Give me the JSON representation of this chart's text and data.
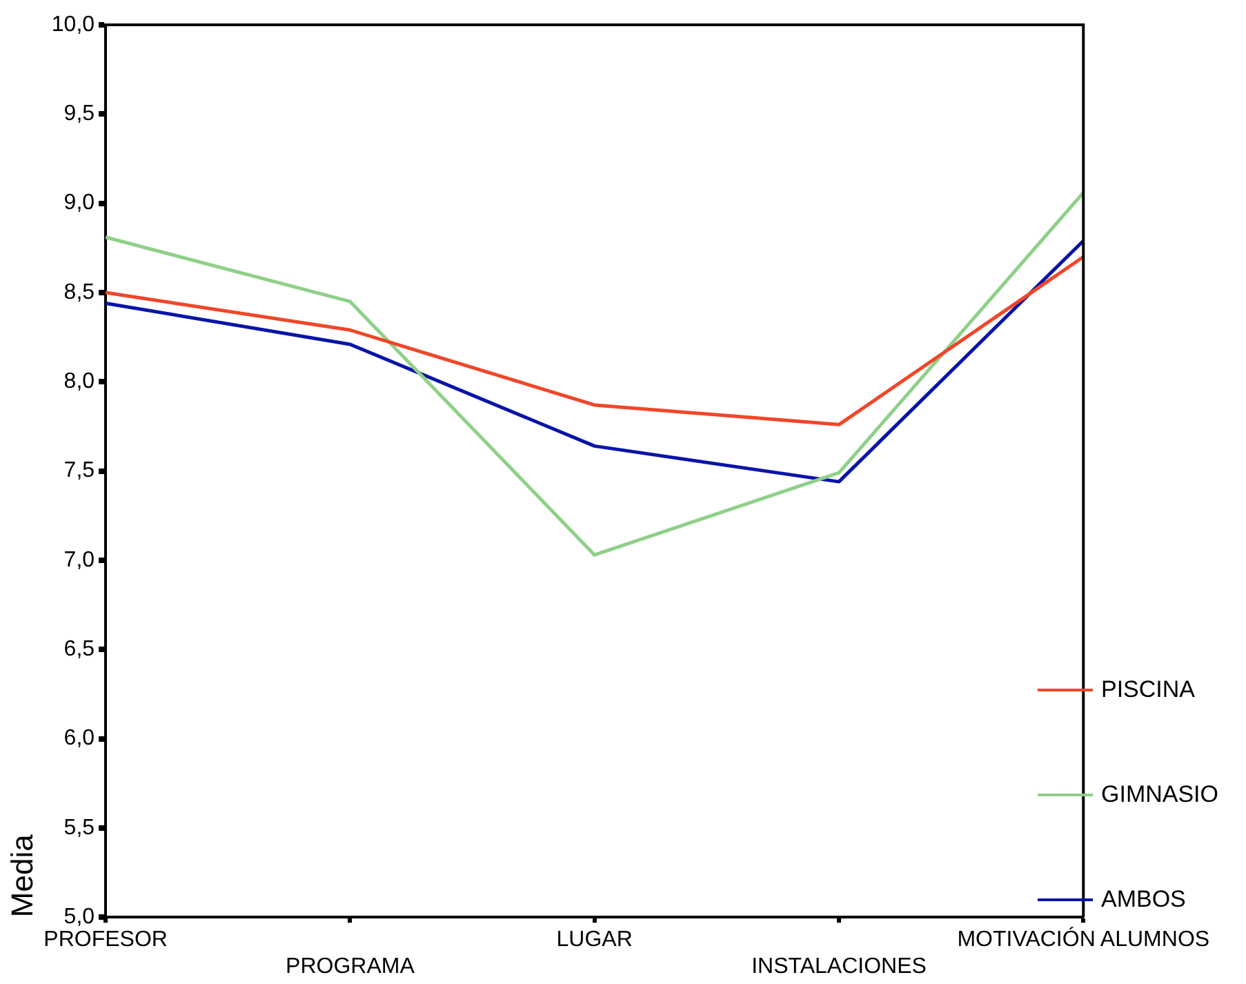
{
  "chart_data": {
    "type": "line",
    "ylabel": "Media",
    "categories": [
      "PROFESOR",
      "PROGRAMA",
      "LUGAR",
      "INSTALACIONES",
      "MOTIVACIÓN ALUMNOS"
    ],
    "series": [
      {
        "name": "PISCINA",
        "color": "#f0462a",
        "values": [
          8.5,
          8.29,
          7.87,
          7.76,
          8.7
        ]
      },
      {
        "name": "GIMNASIO",
        "color": "#8fd088",
        "values": [
          8.81,
          8.45,
          7.03,
          7.49,
          9.06
        ]
      },
      {
        "name": "AMBOS",
        "color": "#0a14a8",
        "values": [
          8.44,
          8.21,
          7.64,
          7.44,
          8.79
        ]
      }
    ],
    "ylim": [
      5,
      10
    ],
    "yticks": [
      {
        "value": 5,
        "label": "5,0"
      },
      {
        "value": 5.5,
        "label": "5,5"
      },
      {
        "value": 6,
        "label": "6,0"
      },
      {
        "value": 6.5,
        "label": "6,5"
      },
      {
        "value": 7,
        "label": "7,0"
      },
      {
        "value": 7.5,
        "label": "7,5"
      },
      {
        "value": 8,
        "label": "8,0"
      },
      {
        "value": 8.5,
        "label": "8,5"
      },
      {
        "value": 9,
        "label": "9,0"
      },
      {
        "value": 9.5,
        "label": "9,5"
      },
      {
        "value": 10,
        "label": "10,0"
      }
    ],
    "grid": false,
    "legend": "right",
    "marker": "none",
    "line_style": "solid"
  }
}
